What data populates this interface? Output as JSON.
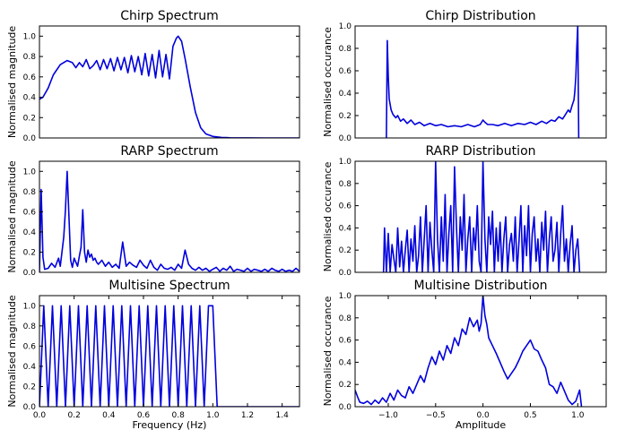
{
  "colors": {
    "line": "#0000dd"
  },
  "chart_data": [
    {
      "id": "chirp-spectrum",
      "type": "line",
      "title": "Chirp Spectrum",
      "xlabel": "",
      "ylabel": "Normalised magnitude",
      "xlim": [
        0,
        1.5
      ],
      "ylim": [
        0,
        1.1
      ],
      "xticks": [],
      "yticks": [
        [
          "0.0",
          0
        ],
        [
          "0.2",
          0.2
        ],
        [
          "0.4",
          0.4
        ],
        [
          "0.6",
          0.6
        ],
        [
          "0.8",
          0.8
        ],
        [
          "1.0",
          1.0
        ]
      ],
      "series": [
        {
          "x": [
            0,
            0.02,
            0.05,
            0.08,
            0.12,
            0.16,
            0.19,
            0.21,
            0.23,
            0.25,
            0.27,
            0.29,
            0.31,
            0.33,
            0.35,
            0.37,
            0.39,
            0.41,
            0.43,
            0.45,
            0.47,
            0.49,
            0.51,
            0.53,
            0.55,
            0.57,
            0.59,
            0.61,
            0.63,
            0.65,
            0.67,
            0.69,
            0.71,
            0.73,
            0.75,
            0.77,
            0.79,
            0.8,
            0.82,
            0.84,
            0.87,
            0.9,
            0.93,
            0.96,
            1.0,
            1.05,
            1.1,
            1.2,
            1.3,
            1.5
          ],
          "y": [
            0.38,
            0.4,
            0.49,
            0.62,
            0.72,
            0.76,
            0.74,
            0.69,
            0.74,
            0.7,
            0.77,
            0.68,
            0.71,
            0.76,
            0.67,
            0.77,
            0.68,
            0.78,
            0.66,
            0.79,
            0.67,
            0.79,
            0.64,
            0.81,
            0.65,
            0.8,
            0.62,
            0.83,
            0.61,
            0.82,
            0.59,
            0.86,
            0.6,
            0.82,
            0.58,
            0.9,
            0.98,
            1.0,
            0.95,
            0.78,
            0.5,
            0.25,
            0.1,
            0.04,
            0.015,
            0.005,
            0.002,
            0.001,
            0.0,
            0.0
          ]
        }
      ]
    },
    {
      "id": "chirp-distribution",
      "type": "line",
      "title": "Chirp Distribution",
      "xlabel": "",
      "ylabel": "Normalised occurance",
      "xlim": [
        -1.35,
        1.3
      ],
      "ylim": [
        0,
        1.0
      ],
      "xticks": [],
      "yticks": [
        [
          "0.0",
          0
        ],
        [
          "0.2",
          0.2
        ],
        [
          "0.4",
          0.4
        ],
        [
          "0.6",
          0.6
        ],
        [
          "0.8",
          0.8
        ],
        [
          "1.0",
          1.0
        ]
      ],
      "series": [
        {
          "x": [
            -1.02,
            -1.01,
            -1.0,
            -0.99,
            -0.97,
            -0.95,
            -0.92,
            -0.9,
            -0.87,
            -0.84,
            -0.8,
            -0.76,
            -0.72,
            -0.67,
            -0.62,
            -0.56,
            -0.5,
            -0.44,
            -0.37,
            -0.3,
            -0.23,
            -0.16,
            -0.09,
            -0.03,
            0.0,
            0.02,
            0.05,
            0.1,
            0.16,
            0.23,
            0.3,
            0.37,
            0.44,
            0.5,
            0.56,
            0.62,
            0.67,
            0.72,
            0.76,
            0.8,
            0.84,
            0.87,
            0.9,
            0.92,
            0.94,
            0.96,
            0.97,
            0.98,
            0.99,
            1.0,
            1.01
          ],
          "y": [
            0.0,
            0.87,
            0.55,
            0.35,
            0.25,
            0.21,
            0.18,
            0.2,
            0.15,
            0.17,
            0.13,
            0.16,
            0.12,
            0.14,
            0.11,
            0.13,
            0.11,
            0.12,
            0.1,
            0.11,
            0.1,
            0.12,
            0.1,
            0.12,
            0.16,
            0.14,
            0.12,
            0.12,
            0.11,
            0.13,
            0.11,
            0.13,
            0.12,
            0.14,
            0.12,
            0.15,
            0.13,
            0.16,
            0.15,
            0.19,
            0.17,
            0.21,
            0.25,
            0.23,
            0.29,
            0.34,
            0.42,
            0.55,
            0.8,
            1.0,
            0.0
          ]
        }
      ]
    },
    {
      "id": "rarp-spectrum",
      "type": "line",
      "title": "RARP Spectrum",
      "xlabel": "",
      "ylabel": "Normalised magnitude",
      "xlim": [
        0,
        1.5
      ],
      "ylim": [
        0,
        1.1
      ],
      "xticks": [],
      "yticks": [
        [
          "0.0",
          0
        ],
        [
          "0.2",
          0.2
        ],
        [
          "0.4",
          0.4
        ],
        [
          "0.6",
          0.6
        ],
        [
          "0.8",
          0.8
        ],
        [
          "1.0",
          1.0
        ]
      ],
      "series": [
        {
          "x": [
            0,
            0.01,
            0.02,
            0.03,
            0.05,
            0.07,
            0.09,
            0.11,
            0.12,
            0.13,
            0.14,
            0.15,
            0.16,
            0.17,
            0.18,
            0.19,
            0.2,
            0.21,
            0.22,
            0.23,
            0.24,
            0.25,
            0.26,
            0.27,
            0.28,
            0.29,
            0.3,
            0.31,
            0.32,
            0.33,
            0.34,
            0.36,
            0.38,
            0.4,
            0.42,
            0.44,
            0.46,
            0.48,
            0.5,
            0.52,
            0.54,
            0.56,
            0.58,
            0.6,
            0.62,
            0.64,
            0.66,
            0.68,
            0.7,
            0.72,
            0.74,
            0.76,
            0.78,
            0.8,
            0.82,
            0.84,
            0.86,
            0.88,
            0.9,
            0.92,
            0.94,
            0.96,
            0.98,
            1.0,
            1.02,
            1.04,
            1.06,
            1.08,
            1.1,
            1.12,
            1.14,
            1.16,
            1.18,
            1.2,
            1.22,
            1.24,
            1.26,
            1.28,
            1.3,
            1.32,
            1.34,
            1.36,
            1.38,
            1.4,
            1.42,
            1.44,
            1.46,
            1.48,
            1.5
          ],
          "y": [
            0.0,
            0.82,
            0.15,
            0.03,
            0.04,
            0.09,
            0.05,
            0.14,
            0.06,
            0.2,
            0.35,
            0.62,
            1.0,
            0.55,
            0.12,
            0.05,
            0.14,
            0.1,
            0.06,
            0.16,
            0.25,
            0.62,
            0.2,
            0.1,
            0.22,
            0.15,
            0.18,
            0.12,
            0.14,
            0.1,
            0.08,
            0.12,
            0.06,
            0.1,
            0.05,
            0.08,
            0.04,
            0.3,
            0.06,
            0.1,
            0.07,
            0.05,
            0.12,
            0.07,
            0.04,
            0.12,
            0.05,
            0.02,
            0.08,
            0.04,
            0.03,
            0.05,
            0.02,
            0.08,
            0.04,
            0.22,
            0.08,
            0.04,
            0.02,
            0.05,
            0.02,
            0.04,
            0.01,
            0.03,
            0.05,
            0.01,
            0.04,
            0.02,
            0.06,
            0.01,
            0.03,
            0.02,
            0.01,
            0.04,
            0.01,
            0.03,
            0.02,
            0.01,
            0.03,
            0.01,
            0.04,
            0.02,
            0.01,
            0.03,
            0.01,
            0.02,
            0.01,
            0.04,
            0.01
          ]
        }
      ]
    },
    {
      "id": "rarp-distribution",
      "type": "line",
      "title": "RARP Distribution",
      "xlabel": "",
      "ylabel": "Normalised occurance",
      "xlim": [
        -1.35,
        1.3
      ],
      "ylim": [
        0,
        1.0
      ],
      "xticks": [],
      "yticks": [
        [
          "0.0",
          0
        ],
        [
          "0.2",
          0.2
        ],
        [
          "0.4",
          0.4
        ],
        [
          "0.6",
          0.6
        ],
        [
          "0.8",
          0.8
        ],
        [
          "1.0",
          1.0
        ]
      ],
      "series": [
        {
          "x": [
            -1.05,
            -1.04,
            -1.02,
            -1.0,
            -0.98,
            -0.96,
            -0.94,
            -0.92,
            -0.9,
            -0.88,
            -0.86,
            -0.84,
            -0.82,
            -0.8,
            -0.78,
            -0.76,
            -0.74,
            -0.72,
            -0.7,
            -0.68,
            -0.66,
            -0.64,
            -0.62,
            -0.6,
            -0.58,
            -0.56,
            -0.54,
            -0.52,
            -0.5,
            -0.48,
            -0.46,
            -0.44,
            -0.42,
            -0.4,
            -0.38,
            -0.36,
            -0.34,
            -0.32,
            -0.3,
            -0.28,
            -0.26,
            -0.24,
            -0.22,
            -0.2,
            -0.18,
            -0.16,
            -0.14,
            -0.12,
            -0.1,
            -0.08,
            -0.06,
            -0.04,
            -0.02,
            0.0,
            0.02,
            0.04,
            0.06,
            0.08,
            0.1,
            0.12,
            0.14,
            0.16,
            0.18,
            0.2,
            0.22,
            0.24,
            0.26,
            0.28,
            0.3,
            0.32,
            0.34,
            0.36,
            0.38,
            0.4,
            0.42,
            0.44,
            0.46,
            0.48,
            0.5,
            0.52,
            0.54,
            0.56,
            0.58,
            0.6,
            0.62,
            0.64,
            0.66,
            0.68,
            0.7,
            0.72,
            0.74,
            0.76,
            0.78,
            0.8,
            0.82,
            0.84,
            0.86,
            0.88,
            0.9,
            0.92,
            0.94,
            0.96,
            0.98,
            1.0,
            1.02
          ],
          "y": [
            0.0,
            0.4,
            0.0,
            0.35,
            0.0,
            0.25,
            0.12,
            0.0,
            0.4,
            0.05,
            0.28,
            0.0,
            0.2,
            0.38,
            0.0,
            0.3,
            0.1,
            0.42,
            0.0,
            0.15,
            0.5,
            0.0,
            0.3,
            0.6,
            0.0,
            0.45,
            0.2,
            0.0,
            1.0,
            0.3,
            0.0,
            0.5,
            0.1,
            0.7,
            0.0,
            0.35,
            0.6,
            0.0,
            0.95,
            0.4,
            0.0,
            0.5,
            0.2,
            0.7,
            0.0,
            0.3,
            0.5,
            0.0,
            0.4,
            0.2,
            0.6,
            0.1,
            0.0,
            1.0,
            0.3,
            0.0,
            0.5,
            0.25,
            0.55,
            0.0,
            0.4,
            0.1,
            0.45,
            0.0,
            0.3,
            0.5,
            0.0,
            0.25,
            0.35,
            0.1,
            0.5,
            0.0,
            0.28,
            0.6,
            0.0,
            0.42,
            0.15,
            0.6,
            0.0,
            0.35,
            0.5,
            0.1,
            0.3,
            0.0,
            0.45,
            0.2,
            0.55,
            0.0,
            0.3,
            0.5,
            0.1,
            0.2,
            0.45,
            0.0,
            0.35,
            0.6,
            0.1,
            0.3,
            0.0,
            0.25,
            0.42,
            0.0,
            0.2,
            0.3,
            0.0
          ]
        }
      ]
    },
    {
      "id": "multisine-spectrum",
      "type": "line",
      "title": "Multisine Spectrum",
      "xlabel": "Frequency (Hz)",
      "ylabel": "Normalised magnitude",
      "xlim": [
        0,
        1.5
      ],
      "ylim": [
        0,
        1.1
      ],
      "xticks": [
        [
          "0.0",
          0
        ],
        [
          "0.2",
          0.2
        ],
        [
          "0.4",
          0.4
        ],
        [
          "0.6",
          0.6
        ],
        [
          "0.8",
          0.8
        ],
        [
          "1.0",
          1.0
        ],
        [
          "1.2",
          1.2
        ],
        [
          "1.4",
          1.4
        ]
      ],
      "yticks": [
        [
          "0.0",
          0
        ],
        [
          "0.2",
          0.2
        ],
        [
          "0.4",
          0.4
        ],
        [
          "0.6",
          0.6
        ],
        [
          "0.8",
          0.8
        ],
        [
          "1.0",
          1.0
        ]
      ],
      "series": [
        {
          "x": [
            0.0,
            0.025,
            0.05,
            0.075,
            0.1,
            0.125,
            0.15,
            0.175,
            0.2,
            0.225,
            0.25,
            0.275,
            0.3,
            0.325,
            0.35,
            0.375,
            0.4,
            0.425,
            0.45,
            0.475,
            0.5,
            0.525,
            0.55,
            0.575,
            0.6,
            0.625,
            0.65,
            0.675,
            0.7,
            0.725,
            0.75,
            0.775,
            0.8,
            0.825,
            0.85,
            0.875,
            0.9,
            0.925,
            0.95,
            0.975,
            1.0,
            1.025,
            1.05,
            1.5
          ],
          "y": [
            0,
            1,
            0,
            1,
            0,
            1,
            0,
            1,
            0,
            1,
            0,
            1,
            0,
            1,
            0,
            1,
            0,
            1,
            0,
            1,
            0,
            1,
            0,
            1,
            0,
            1,
            0,
            1,
            0,
            1,
            0,
            1,
            0,
            1,
            0,
            1,
            0,
            1,
            0,
            1,
            1,
            0,
            0,
            0
          ]
        }
      ]
    },
    {
      "id": "multisine-distribution",
      "type": "line",
      "title": "Multisine Distribution",
      "xlabel": "Amplitude",
      "ylabel": "Normalised occurance",
      "xlim": [
        -1.35,
        1.3
      ],
      "ylim": [
        0,
        1.0
      ],
      "xticks": [
        [
          "−1.0",
          -1.0
        ],
        [
          "−0.5",
          -0.5
        ],
        [
          "0.0",
          0.0
        ],
        [
          "0.5",
          0.5
        ],
        [
          "1.0",
          1.0
        ]
      ],
      "yticks": [
        [
          "0.0",
          0
        ],
        [
          "0.2",
          0.2
        ],
        [
          "0.4",
          0.4
        ],
        [
          "0.6",
          0.6
        ],
        [
          "0.8",
          0.8
        ],
        [
          "1.0",
          1.0
        ]
      ],
      "series": [
        {
          "x": [
            -1.35,
            -1.32,
            -1.3,
            -1.26,
            -1.22,
            -1.18,
            -1.14,
            -1.1,
            -1.06,
            -1.02,
            -0.98,
            -0.94,
            -0.9,
            -0.86,
            -0.82,
            -0.78,
            -0.74,
            -0.7,
            -0.66,
            -0.62,
            -0.58,
            -0.54,
            -0.5,
            -0.46,
            -0.42,
            -0.38,
            -0.34,
            -0.3,
            -0.26,
            -0.22,
            -0.18,
            -0.14,
            -0.1,
            -0.06,
            -0.04,
            -0.02,
            0.0,
            0.02,
            0.04,
            0.06,
            0.1,
            0.14,
            0.18,
            0.22,
            0.26,
            0.3,
            0.34,
            0.38,
            0.42,
            0.46,
            0.5,
            0.54,
            0.58,
            0.62,
            0.66,
            0.7,
            0.74,
            0.78,
            0.82,
            0.86,
            0.9,
            0.94,
            0.98,
            1.02,
            1.04
          ],
          "y": [
            0.15,
            0.08,
            0.04,
            0.03,
            0.05,
            0.02,
            0.06,
            0.03,
            0.08,
            0.04,
            0.12,
            0.06,
            0.15,
            0.1,
            0.08,
            0.18,
            0.12,
            0.2,
            0.28,
            0.22,
            0.35,
            0.45,
            0.38,
            0.5,
            0.42,
            0.55,
            0.48,
            0.62,
            0.55,
            0.7,
            0.65,
            0.8,
            0.72,
            0.78,
            0.68,
            0.75,
            1.0,
            0.82,
            0.74,
            0.62,
            0.55,
            0.48,
            0.4,
            0.32,
            0.25,
            0.3,
            0.35,
            0.42,
            0.5,
            0.55,
            0.6,
            0.52,
            0.5,
            0.42,
            0.35,
            0.2,
            0.18,
            0.12,
            0.22,
            0.14,
            0.06,
            0.02,
            0.05,
            0.15,
            0.0
          ]
        }
      ]
    }
  ]
}
